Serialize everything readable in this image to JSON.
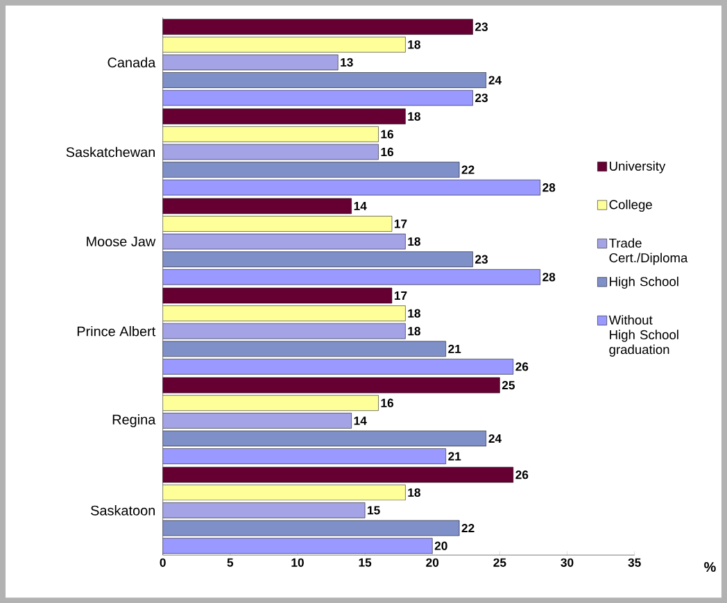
{
  "chart_data": {
    "type": "bar",
    "orientation": "horizontal",
    "categories": [
      "Canada",
      "Saskatchewan",
      "Moose Jaw",
      "Prince Albert",
      "Regina",
      "Saskatoon"
    ],
    "series": [
      {
        "name": "University",
        "color": "#660033",
        "values": [
          23,
          18,
          14,
          17,
          25,
          26
        ]
      },
      {
        "name": "College",
        "color": "#ffff99",
        "values": [
          18,
          16,
          17,
          18,
          16,
          18
        ]
      },
      {
        "name": "Trade Cert./Diploma",
        "color": "#a3a3e6",
        "values": [
          13,
          16,
          18,
          18,
          14,
          15
        ]
      },
      {
        "name": "High School",
        "color": "#7f8fc8",
        "values": [
          24,
          22,
          23,
          21,
          24,
          22
        ]
      },
      {
        "name": "Without High School graduation",
        "color": "#9999ff",
        "values": [
          23,
          28,
          28,
          26,
          21,
          20
        ]
      }
    ],
    "xlabel": "%",
    "xlim": [
      0,
      35
    ],
    "xticks": [
      0,
      5,
      10,
      15,
      20,
      25,
      30,
      35
    ],
    "data_labels": true,
    "legend": "right",
    "grid": false
  }
}
